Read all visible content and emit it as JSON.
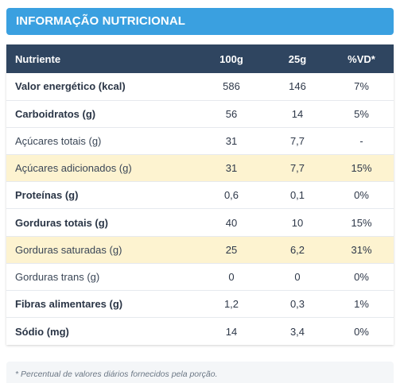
{
  "header": {
    "title": "INFORMAÇÃO NUTRICIONAL"
  },
  "table": {
    "columns": [
      "Nutriente",
      "100g",
      "25g",
      "%VD*"
    ],
    "rows": [
      {
        "name": "Valor energético (kcal)",
        "per100": "586",
        "per25": "146",
        "vd": "7%",
        "bold": true,
        "highlight": false
      },
      {
        "name": "Carboidratos (g)",
        "per100": "56",
        "per25": "14",
        "vd": "5%",
        "bold": true,
        "highlight": false
      },
      {
        "name": "Açúcares totais (g)",
        "per100": "31",
        "per25": "7,7",
        "vd": "-",
        "bold": false,
        "highlight": false
      },
      {
        "name": "Açúcares adicionados (g)",
        "per100": "31",
        "per25": "7,7",
        "vd": "15%",
        "bold": false,
        "highlight": true
      },
      {
        "name": "Proteínas (g)",
        "per100": "0,6",
        "per25": "0,1",
        "vd": "0%",
        "bold": true,
        "highlight": false
      },
      {
        "name": "Gorduras totais (g)",
        "per100": "40",
        "per25": "10",
        "vd": "15%",
        "bold": true,
        "highlight": false
      },
      {
        "name": "Gorduras saturadas (g)",
        "per100": "25",
        "per25": "6,2",
        "vd": "31%",
        "bold": false,
        "highlight": true
      },
      {
        "name": "Gorduras trans (g)",
        "per100": "0",
        "per25": "0",
        "vd": "0%",
        "bold": false,
        "highlight": false
      },
      {
        "name": "Fibras alimentares (g)",
        "per100": "1,2",
        "per25": "0,3",
        "vd": "1%",
        "bold": true,
        "highlight": false
      },
      {
        "name": "Sódio (mg)",
        "per100": "14",
        "per25": "3,4",
        "vd": "0%",
        "bold": true,
        "highlight": false
      }
    ]
  },
  "footnote": "* Percentual de valores diários fornecidos pela porção.",
  "colors": {
    "header_bg": "#3aa0e0",
    "table_head_bg": "#2f4560",
    "highlight_row_bg": "#fdf3d0"
  }
}
